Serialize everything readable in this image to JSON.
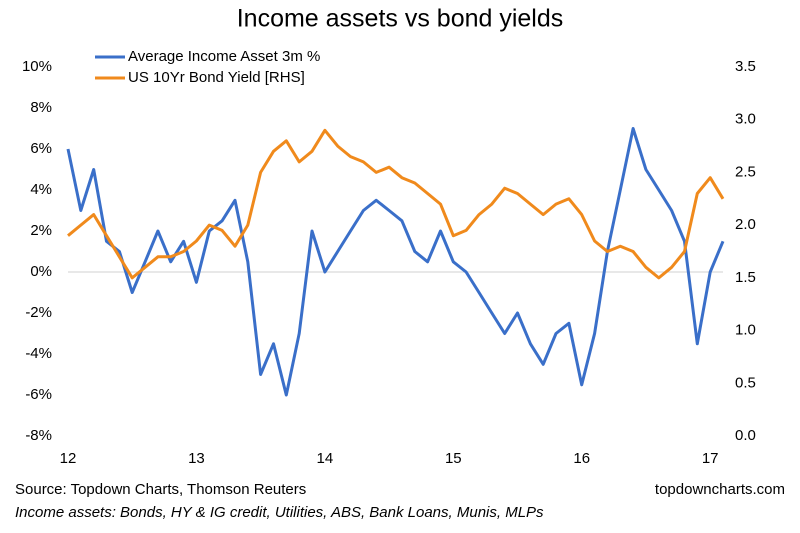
{
  "chart_data": {
    "type": "line",
    "title": "Income assets vs bond yields",
    "source": "Source: Topdown Charts, Thomson Reuters",
    "watermark": "topdowncharts.com",
    "note": "Income assets: Bonds, HY & IG credit, Utilities, ABS, Bank Loans, Munis, MLPs",
    "x": [
      12.0,
      12.1,
      12.2,
      12.3,
      12.4,
      12.5,
      12.6,
      12.7,
      12.8,
      12.9,
      13.0,
      13.1,
      13.2,
      13.3,
      13.4,
      13.5,
      13.6,
      13.7,
      13.8,
      13.9,
      14.0,
      14.1,
      14.2,
      14.3,
      14.4,
      14.5,
      14.6,
      14.7,
      14.8,
      14.9,
      15.0,
      15.1,
      15.2,
      15.3,
      15.4,
      15.5,
      15.6,
      15.7,
      15.8,
      15.9,
      16.0,
      16.1,
      16.2,
      16.3,
      16.4,
      16.5,
      16.6,
      16.7,
      16.8,
      16.9,
      17.0,
      17.1
    ],
    "xlim": [
      12,
      17.1
    ],
    "xticks": [
      12,
      13,
      14,
      15,
      16,
      17
    ],
    "series": [
      {
        "name": "Average Income Asset 3m %",
        "color": "#3a6fc9",
        "axis": "y",
        "values": [
          6,
          3,
          5,
          1.5,
          1,
          -1,
          0.5,
          2,
          0.5,
          1.5,
          -0.5,
          2,
          2.5,
          3.5,
          0.5,
          -5,
          -3.5,
          -6,
          -3,
          2,
          0,
          1,
          2,
          3,
          3.5,
          3,
          2.5,
          1,
          0.5,
          2,
          0.5,
          0,
          -1,
          -2,
          -3,
          -2,
          -3.5,
          -4.5,
          -3,
          -2.5,
          -5.5,
          -3,
          1,
          4,
          7,
          5,
          4,
          3,
          1.5,
          -3.5,
          0,
          1.5
        ]
      },
      {
        "name": "US 10Yr Bond Yield [RHS]",
        "color": "#f08a1c",
        "axis": "y2",
        "values": [
          1.9,
          2.0,
          2.1,
          1.9,
          1.7,
          1.5,
          1.6,
          1.7,
          1.7,
          1.75,
          1.85,
          2.0,
          1.95,
          1.8,
          2.0,
          2.5,
          2.7,
          2.8,
          2.6,
          2.7,
          2.9,
          2.75,
          2.65,
          2.6,
          2.5,
          2.55,
          2.45,
          2.4,
          2.3,
          2.2,
          1.9,
          1.95,
          2.1,
          2.2,
          2.35,
          2.3,
          2.2,
          2.1,
          2.2,
          2.25,
          2.1,
          1.85,
          1.75,
          1.8,
          1.75,
          1.6,
          1.5,
          1.6,
          1.75,
          2.3,
          2.45,
          2.25
        ]
      }
    ],
    "ylim": [
      -8,
      10
    ],
    "yticks": [
      {
        "value": -8,
        "label": "-8%"
      },
      {
        "value": -6,
        "label": "-6%"
      },
      {
        "value": -4,
        "label": "-4%"
      },
      {
        "value": -2,
        "label": "-2%"
      },
      {
        "value": 0,
        "label": "0%"
      },
      {
        "value": 2,
        "label": "2%"
      },
      {
        "value": 4,
        "label": "4%"
      },
      {
        "value": 6,
        "label": "6%"
      },
      {
        "value": 8,
        "label": "8%"
      },
      {
        "value": 10,
        "label": "10%"
      }
    ],
    "y2lim": [
      0,
      3.5
    ],
    "y2ticks": [
      {
        "value": 0,
        "label": "0.0"
      },
      0.5,
      {
        "value": 1,
        "label": "1.0"
      },
      1.5,
      {
        "value": 2,
        "label": "2.0"
      },
      2.5,
      {
        "value": 3,
        "label": "3.0"
      },
      3.5
    ],
    "grid": false,
    "legend": "top-left"
  }
}
